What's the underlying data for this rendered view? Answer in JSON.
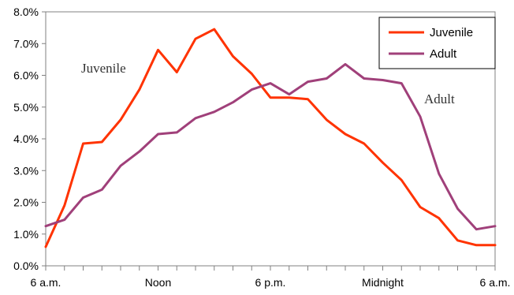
{
  "chart_data": {
    "type": "line",
    "categories": [
      "6 a.m.",
      "",
      "",
      "",
      "",
      "",
      "Noon",
      "",
      "",
      "",
      "",
      "",
      "6 p.m.",
      "",
      "",
      "",
      "",
      "",
      "Midnight",
      "",
      "",
      "",
      "",
      "",
      "6 a.m."
    ],
    "x_tick_labels": [
      "6 a.m.",
      "Noon",
      "6 p.m.",
      "Midnight",
      "6 a.m."
    ],
    "series": [
      {
        "name": "Juvenile",
        "color": "#ff3300",
        "values": [
          0.6,
          1.9,
          3.85,
          3.9,
          4.6,
          5.55,
          6.8,
          6.1,
          7.15,
          7.45,
          6.6,
          6.05,
          5.3,
          5.3,
          5.25,
          4.6,
          4.15,
          3.85,
          3.25,
          2.7,
          1.85,
          1.5,
          0.8,
          0.65,
          0.65
        ]
      },
      {
        "name": "Adult",
        "color": "#a0407a",
        "values": [
          1.25,
          1.45,
          2.15,
          2.4,
          3.15,
          3.6,
          4.15,
          4.2,
          4.65,
          4.85,
          5.15,
          5.55,
          5.75,
          5.4,
          5.8,
          5.9,
          6.35,
          5.9,
          5.85,
          5.75,
          4.7,
          2.9,
          1.8,
          1.15,
          1.25
        ]
      }
    ],
    "y_tick_labels": [
      "0.0%",
      "1.0%",
      "2.0%",
      "3.0%",
      "4.0%",
      "5.0%",
      "6.0%",
      "7.0%",
      "8.0%"
    ],
    "ylim": [
      0,
      8
    ],
    "grid": false,
    "legend_position": "top-right",
    "annotations": [
      {
        "text": "Juvenile",
        "series": "Juvenile"
      },
      {
        "text": "Adult",
        "series": "Adult"
      }
    ]
  }
}
